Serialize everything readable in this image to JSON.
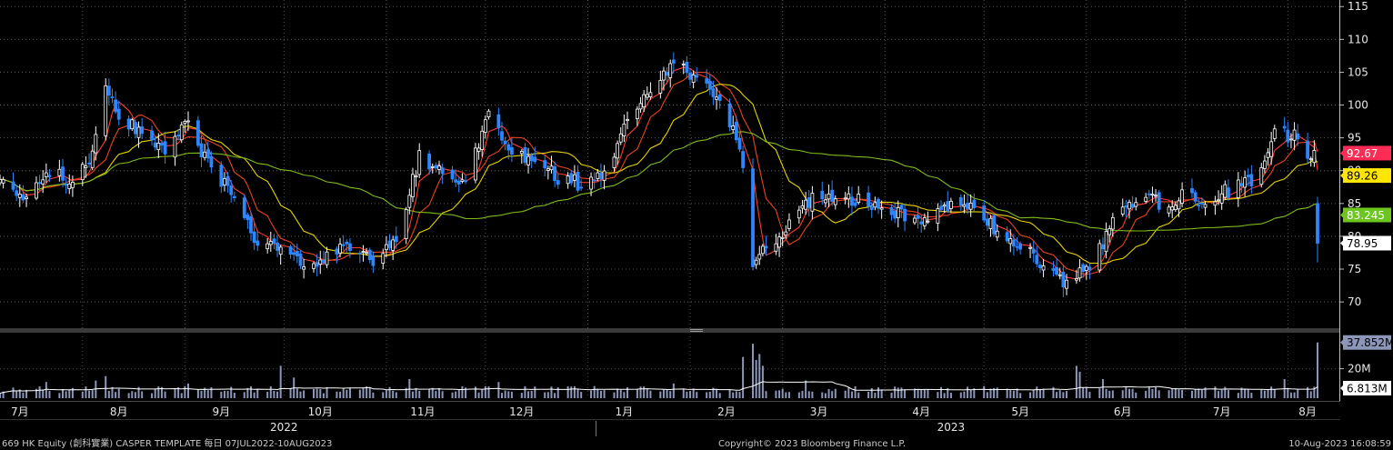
{
  "chart_data": [
    {
      "type": "candlestick",
      "panel": "price",
      "ylim": [
        66,
        116
      ],
      "y_ticks": [
        70,
        75,
        80,
        85,
        90,
        95,
        100,
        105,
        110,
        115
      ],
      "grid": true,
      "x_start": "2022-07-07",
      "x_end": "2023-08-10",
      "close_anchors": [
        [
          "2022-07-07",
          88
        ],
        [
          "2022-07-15",
          85
        ],
        [
          "2022-07-22",
          90
        ],
        [
          "2022-07-29",
          88
        ],
        [
          "2022-08-04",
          92
        ],
        [
          "2022-08-08",
          103
        ],
        [
          "2022-08-12",
          98
        ],
        [
          "2022-08-19",
          96
        ],
        [
          "2022-08-26",
          93
        ],
        [
          "2022-09-02",
          97
        ],
        [
          "2022-09-09",
          90
        ],
        [
          "2022-09-16",
          86
        ],
        [
          "2022-09-22",
          80
        ],
        [
          "2022-09-30",
          78
        ],
        [
          "2022-10-07",
          76
        ],
        [
          "2022-10-14",
          77
        ],
        [
          "2022-10-21",
          79
        ],
        [
          "2022-10-28",
          76
        ],
        [
          "2022-11-04",
          80
        ],
        [
          "2022-11-11",
          92
        ],
        [
          "2022-11-18",
          90
        ],
        [
          "2022-11-25",
          88
        ],
        [
          "2022-12-02",
          98
        ],
        [
          "2022-12-09",
          93
        ],
        [
          "2022-12-16",
          92
        ],
        [
          "2022-12-23",
          89
        ],
        [
          "2022-12-30",
          88
        ],
        [
          "2023-01-06",
          90
        ],
        [
          "2023-01-13",
          97
        ],
        [
          "2023-01-20",
          102
        ],
        [
          "2023-01-27",
          107
        ],
        [
          "2023-02-03",
          104
        ],
        [
          "2023-02-10",
          100
        ],
        [
          "2023-02-16",
          94
        ],
        [
          "2023-02-20",
          76
        ],
        [
          "2023-02-24",
          78
        ],
        [
          "2023-03-03",
          82
        ],
        [
          "2023-03-10",
          86
        ],
        [
          "2023-03-17",
          85
        ],
        [
          "2023-03-24",
          86
        ],
        [
          "2023-03-31",
          84
        ],
        [
          "2023-04-07",
          83
        ],
        [
          "2023-04-14",
          82
        ],
        [
          "2023-04-21",
          85
        ],
        [
          "2023-04-28",
          84
        ],
        [
          "2023-05-05",
          81
        ],
        [
          "2023-05-12",
          79
        ],
        [
          "2023-05-19",
          75
        ],
        [
          "2023-05-26",
          73
        ],
        [
          "2023-06-02",
          75
        ],
        [
          "2023-06-09",
          82
        ],
        [
          "2023-06-16",
          86
        ],
        [
          "2023-06-23",
          85
        ],
        [
          "2023-06-30",
          86
        ],
        [
          "2023-07-07",
          85
        ],
        [
          "2023-07-14",
          87
        ],
        [
          "2023-07-21",
          88
        ],
        [
          "2023-07-28",
          96
        ],
        [
          "2023-08-03",
          95
        ],
        [
          "2023-08-09",
          92
        ],
        [
          "2023-08-10",
          78.95
        ]
      ],
      "close_noise": 1.2,
      "intraday_range": [
        0.6,
        3.2
      ],
      "series": [
        {
          "name": "MA short",
          "color": "#ff3b30",
          "period": 5
        },
        {
          "name": "MA mid",
          "color": "#e8431e",
          "period": 10
        },
        {
          "name": "MA 20",
          "color": "#e6d200",
          "period": 20
        },
        {
          "name": "MA long",
          "color": "#7fba1a",
          "period": 60
        }
      ],
      "up_color": "#ffffff",
      "down_color": "#2c86ff",
      "value_tags": [
        {
          "label": "92.67",
          "bg": "#ff2d55",
          "fg": "#ffffff",
          "y": 92.67
        },
        {
          "label": "89.26",
          "bg": "#ffe600",
          "fg": "#000000",
          "y": 89.26
        },
        {
          "label": "83.245",
          "bg": "#6cc61f",
          "fg": "#ffffff",
          "y": 83.245
        },
        {
          "label": "78.95",
          "bg": "#ffffff",
          "fg": "#000000",
          "y": 78.95
        }
      ]
    },
    {
      "type": "bar",
      "panel": "volume",
      "unit": "M",
      "ylim": [
        0,
        42
      ],
      "y_ticks": [
        {
          "label": "20M",
          "value": 20
        }
      ],
      "base_volume": 5.5,
      "spikes": [
        [
          "2022-07-21",
          11
        ],
        [
          "2022-08-05",
          12
        ],
        [
          "2022-08-08",
          15
        ],
        [
          "2022-09-02",
          10
        ],
        [
          "2022-09-30",
          22
        ],
        [
          "2022-10-04",
          14
        ],
        [
          "2022-11-08",
          13
        ],
        [
          "2022-12-05",
          11
        ],
        [
          "2023-01-27",
          10
        ],
        [
          "2023-02-17",
          28
        ],
        [
          "2023-02-20",
          37
        ],
        [
          "2023-02-21",
          26
        ],
        [
          "2023-02-22",
          30
        ],
        [
          "2023-02-23",
          22
        ],
        [
          "2023-03-08",
          12
        ],
        [
          "2023-05-29",
          22
        ],
        [
          "2023-05-30",
          18
        ],
        [
          "2023-06-06",
          13
        ],
        [
          "2023-07-31",
          13
        ],
        [
          "2023-08-10",
          37.852
        ]
      ],
      "series": [
        {
          "name": "Volume",
          "color": "#8c96b8"
        },
        {
          "name": "Volume MA",
          "color": "#ffffff"
        }
      ],
      "value_tags": [
        {
          "label": "37.852M",
          "bg": "#8c96b8",
          "fg": "#000000",
          "y": 37.852
        },
        {
          "label": "6.813M",
          "bg": "#ffffff",
          "fg": "#000000",
          "y": 6.813
        }
      ]
    }
  ],
  "x_axis": {
    "month_labels": [
      {
        "label": "7月",
        "date": "2022-07-13"
      },
      {
        "label": "8月",
        "date": "2022-08-12"
      },
      {
        "label": "9月",
        "date": "2022-09-12"
      },
      {
        "label": "10月",
        "date": "2022-10-12"
      },
      {
        "label": "11月",
        "date": "2022-11-12"
      },
      {
        "label": "12月",
        "date": "2022-12-12"
      },
      {
        "label": "1月",
        "date": "2023-01-12"
      },
      {
        "label": "2月",
        "date": "2023-02-12"
      },
      {
        "label": "3月",
        "date": "2023-03-12"
      },
      {
        "label": "4月",
        "date": "2023-04-12"
      },
      {
        "label": "5月",
        "date": "2023-05-12"
      },
      {
        "label": "6月",
        "date": "2023-06-12"
      },
      {
        "label": "7月",
        "date": "2023-07-12"
      },
      {
        "label": "8月",
        "date": "2023-08-07"
      }
    ],
    "year_labels": [
      {
        "label": "2022",
        "date": "2022-10-01"
      },
      {
        "label": "2023",
        "date": "2023-04-21"
      }
    ]
  },
  "footer": {
    "left": "669 HK Equity (創科實業) CASPER TEMPLATE  每日 07JUL2022-10AUG2023",
    "center": "Copyright© 2023 Bloomberg Finance L.P.",
    "right": "10-Aug-2023 16:08:59"
  }
}
